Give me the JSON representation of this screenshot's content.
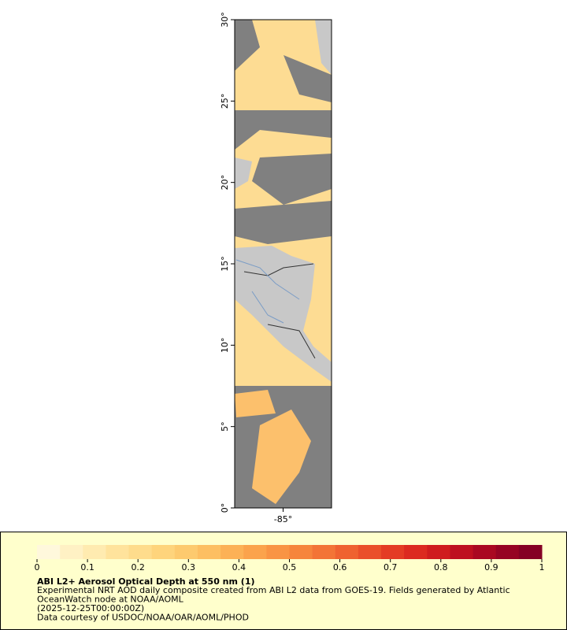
{
  "map": {
    "ylim": [
      0,
      30
    ],
    "yticks": [
      {
        "value": 0,
        "label": "0°"
      },
      {
        "value": 5,
        "label": "5°"
      },
      {
        "value": 10,
        "label": "10°"
      },
      {
        "value": 15,
        "label": "15°"
      },
      {
        "value": 20,
        "label": "20°"
      },
      {
        "value": 25,
        "label": "25°"
      },
      {
        "value": 30,
        "label": "30°"
      }
    ],
    "xlim": [
      -88,
      -82
    ],
    "xticks": [
      {
        "value": -85,
        "label": "-85°"
      }
    ]
  },
  "colorbar": {
    "lim": [
      0,
      1
    ],
    "ticks": [
      0,
      0.1,
      0.2,
      0.3,
      0.4,
      0.5,
      0.6,
      0.7,
      0.8,
      0.9,
      1
    ],
    "colors": [
      "#fff8dc",
      "#fff1c4",
      "#ffebb0",
      "#ffe39c",
      "#fedc8c",
      "#fed47c",
      "#fdca6e",
      "#fdbf62",
      "#fcb156",
      "#fba34c",
      "#f99444",
      "#f6853c",
      "#f37436",
      "#ef6230",
      "#ea4f2a",
      "#e43c24",
      "#dc2a20",
      "#cf1c1e",
      "#be101f",
      "#aa0821",
      "#960323",
      "#850024"
    ]
  },
  "legend": {
    "title": "ABI L2+ Aerosol Optical Depth at 550 nm (1)",
    "lines": [
      "Experimental NRT AOD daily composite created from ABI L2 data from GOES-19. Fields generated by Atlantic",
      "OceanWatch node at NOAA/AOML",
      "(2025-12-25T00:00:00Z)",
      "Data courtesy of USDOC/NOAA/OAR/AOML/PHOD"
    ]
  }
}
